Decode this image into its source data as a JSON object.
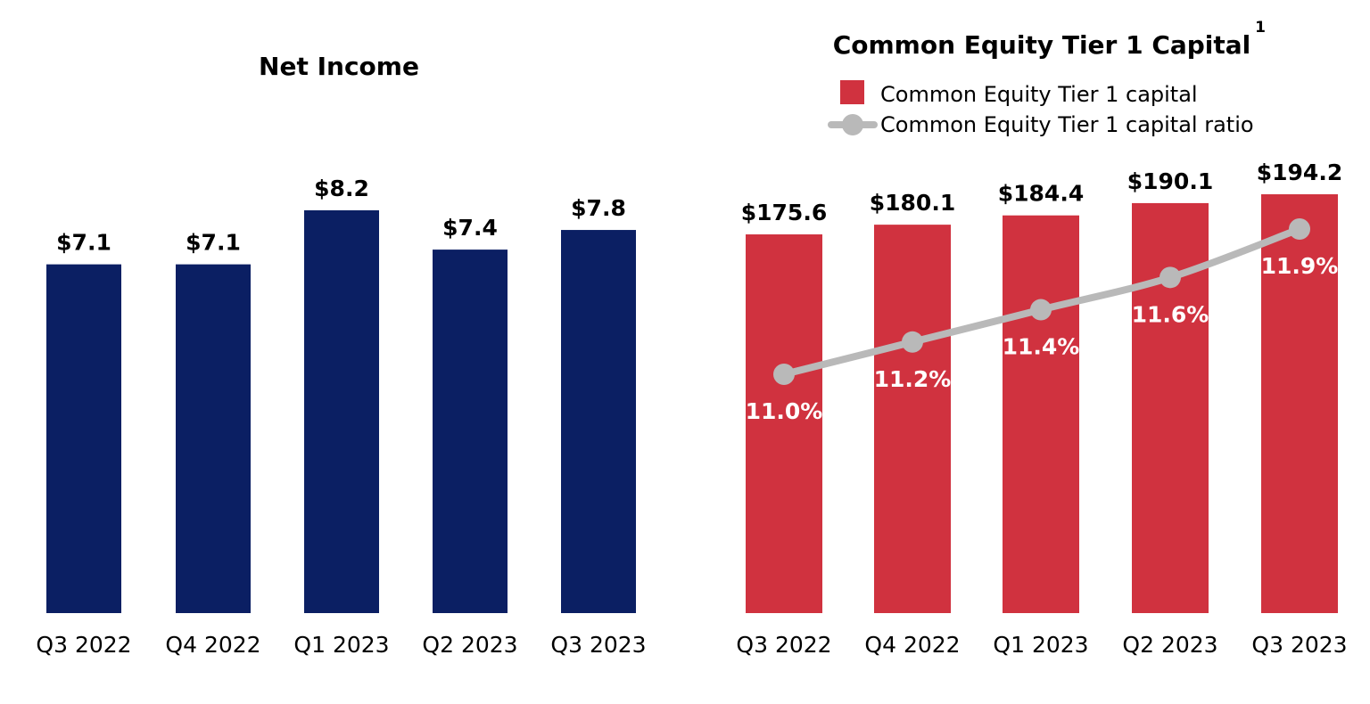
{
  "chart_data": [
    {
      "type": "bar",
      "title": "Net Income",
      "categories": [
        "Q3 2022",
        "Q4 2022",
        "Q1 2023",
        "Q2 2023",
        "Q3 2023"
      ],
      "series": [
        {
          "values": [
            7.1,
            7.1,
            8.2,
            7.4,
            7.8
          ],
          "labels": [
            "$7.1",
            "$7.1",
            "$8.2",
            "$7.4",
            "$7.8"
          ],
          "color": "#0b1f63"
        }
      ],
      "ylim": [
        0,
        8.2
      ],
      "grid": false
    },
    {
      "type": "bar",
      "title": "Common Equity Tier 1 Capital",
      "title_footnote": "1",
      "categories": [
        "Q3 2022",
        "Q4 2022",
        "Q1 2023",
        "Q2 2023",
        "Q3 2023"
      ],
      "series": [
        {
          "name": "Common Equity Tier 1 capital",
          "type": "bar",
          "values": [
            175.6,
            180.1,
            184.4,
            190.1,
            194.2
          ],
          "labels": [
            "$175.6",
            "$180.1",
            "$184.4",
            "$190.1",
            "$194.2"
          ],
          "color": "#d0323f"
        },
        {
          "name": "Common Equity Tier 1 capital ratio",
          "type": "line",
          "values": [
            11.0,
            11.2,
            11.4,
            11.6,
            11.9
          ],
          "labels": [
            "11.0%",
            "11.2%",
            "11.4%",
            "11.6%",
            "11.9%"
          ],
          "color": "#b9b9b9"
        }
      ],
      "legend_position": "top",
      "grid": false
    }
  ]
}
